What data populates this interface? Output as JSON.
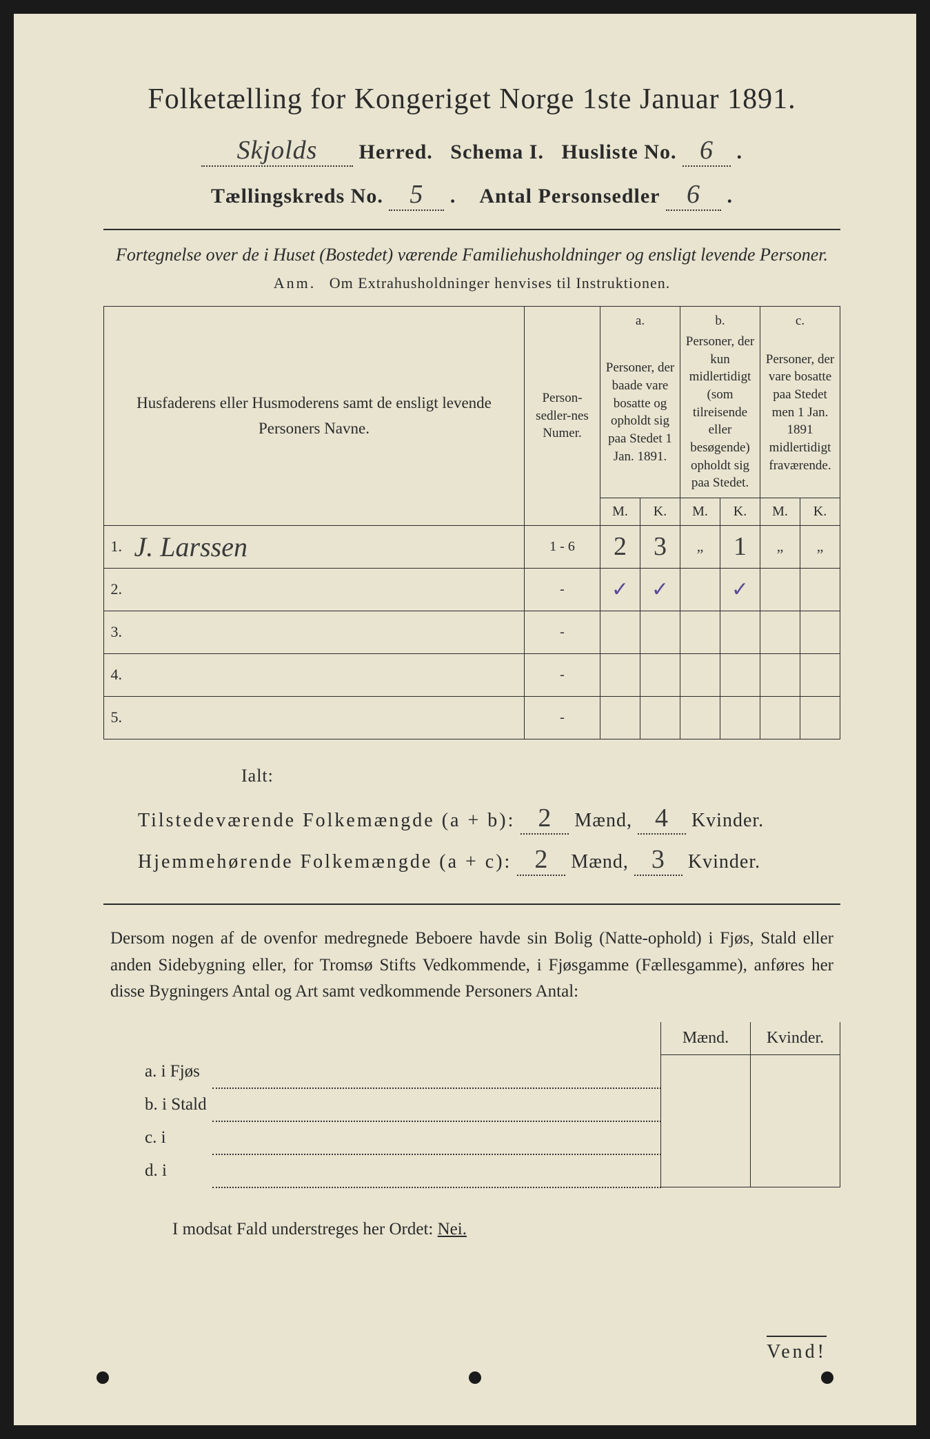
{
  "title": "Folketælling for Kongeriget Norge 1ste Januar 1891.",
  "header": {
    "herred_value": "Skjolds",
    "herred_label": "Herred.",
    "schema_label": "Schema I.",
    "husliste_label": "Husliste No.",
    "husliste_value": "6",
    "tkreds_label": "Tællingskreds No.",
    "tkreds_value": "5",
    "antps_label": "Antal Personsedler",
    "antps_value": "6"
  },
  "subtitle": "Fortegnelse over de i Huset (Bostedet) værende Familiehusholdninger og ensligt levende Personer.",
  "note_prefix": "Anm.",
  "note_text": "Om Extrahusholdninger henvises til Instruktionen.",
  "columns": {
    "name_header": "Husfaderens eller Husmoderens samt de ensligt levende Personers Navne.",
    "numer_header": "Person-sedler-nes Numer.",
    "a_label": "a.",
    "a_desc": "Personer, der baade vare bosatte og opholdt sig paa Stedet 1 Jan. 1891.",
    "b_label": "b.",
    "b_desc": "Personer, der kun midlertidigt (som tilreisende eller besøgende) opholdt sig paa Stedet.",
    "c_label": "c.",
    "c_desc": "Personer, der vare bosatte paa Stedet men 1 Jan. 1891 midlertidigt fraværende.",
    "m": "M.",
    "k": "K."
  },
  "rows": [
    {
      "n": "1.",
      "name": "J. Larssen",
      "numer": "1 - 6",
      "am": "2",
      "ak": "3",
      "bm": "„",
      "bk": "1",
      "cm": "„",
      "ck": "„"
    },
    {
      "n": "2.",
      "name": "",
      "numer": "-",
      "am": "✓",
      "ak": "✓",
      "bm": "",
      "bk": "✓",
      "cm": "",
      "ck": ""
    },
    {
      "n": "3.",
      "name": "",
      "numer": "-",
      "am": "",
      "ak": "",
      "bm": "",
      "bk": "",
      "cm": "",
      "ck": ""
    },
    {
      "n": "4.",
      "name": "",
      "numer": "-",
      "am": "",
      "ak": "",
      "bm": "",
      "bk": "",
      "cm": "",
      "ck": ""
    },
    {
      "n": "5.",
      "name": "",
      "numer": "-",
      "am": "",
      "ak": "",
      "bm": "",
      "bk": "",
      "cm": "",
      "ck": ""
    }
  ],
  "summary": {
    "ialt": "Ialt:",
    "line1_label": "Tilstedeværende Folkemængde (a + b):",
    "line1_m": "2",
    "line1_k": "4",
    "line2_label": "Hjemmehørende Folkemængde (a + c):",
    "line2_m": "2",
    "line2_k": "3",
    "maend": "Mænd,",
    "kvinder": "Kvinder."
  },
  "paragraph": "Dersom nogen af de ovenfor medregnede Beboere havde sin Bolig (Natte-ophold) i Fjøs, Stald eller anden Sidebygning eller, for Tromsø Stifts Vedkommende, i Fjøsgamme (Fællesgamme), anføres her disse Bygningers Antal og Art samt vedkommende Personers Antal:",
  "lower": {
    "maend": "Mænd.",
    "kvinder": "Kvinder.",
    "a": "a.  i     Fjøs",
    "b": "b.  i     Stald",
    "c": "c.  i",
    "d": "d.  i"
  },
  "closing": "I modsat Fald understreges her Ordet:",
  "nei": "Nei.",
  "vend": "Vend!",
  "colors": {
    "paper": "#e8e4d0",
    "ink": "#2a2a2a",
    "pencil_check": "#5a4a9a",
    "background": "#1a1a1a"
  }
}
